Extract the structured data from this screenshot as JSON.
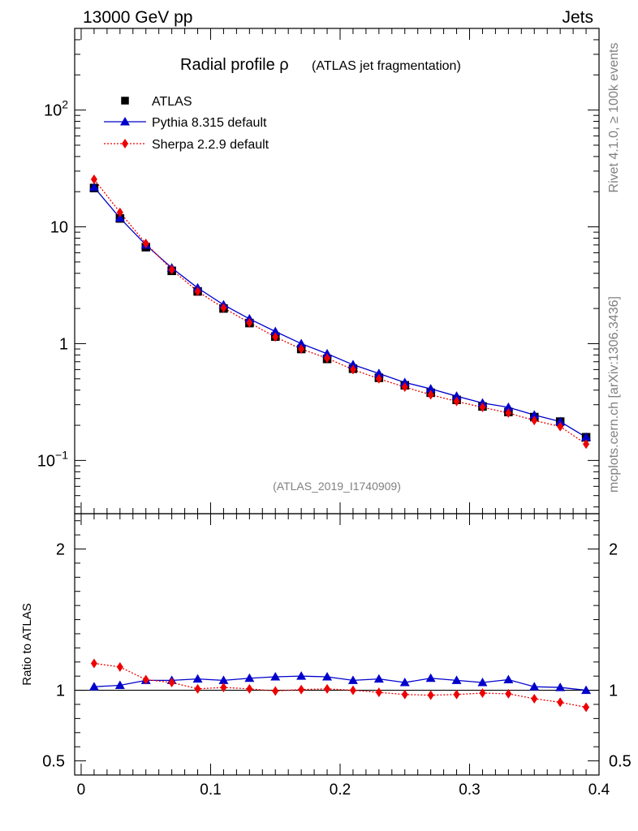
{
  "header": {
    "left": "13000 GeV pp",
    "right": "Jets"
  },
  "side_labels": {
    "top": "Rivet 4.1.0, ≥ 100k events",
    "bottom": "mcplots.cern.ch [arXiv:1306.3436]"
  },
  "chart_data": {
    "type": "line",
    "title_main": "Radial profile ρ",
    "title_sub": "(ATLAS jet fragmentation)",
    "analysis_tag": "(ATLAS_2019_I1740909)",
    "x": [
      0.01,
      0.03,
      0.05,
      0.07,
      0.09,
      0.11,
      0.13,
      0.15,
      0.17,
      0.19,
      0.21,
      0.23,
      0.25,
      0.27,
      0.29,
      0.31,
      0.33,
      0.35,
      0.37,
      0.39
    ],
    "xlim": [
      -0.005,
      0.4
    ],
    "x_ticks": [
      {
        "value": 0,
        "label": "0"
      },
      {
        "value": 0.1,
        "label": "0.1"
      },
      {
        "value": 0.2,
        "label": "0.2"
      },
      {
        "value": 0.3,
        "label": "0.3"
      },
      {
        "value": 0.4,
        "label": "0.4"
      }
    ],
    "main": {
      "yscale": "log",
      "ylim": [
        0.035,
        500
      ],
      "y_ticks": [
        {
          "value": 0.1,
          "base": "10",
          "exp": "−1"
        },
        {
          "value": 1,
          "label": "1"
        },
        {
          "value": 10,
          "label": "10"
        },
        {
          "value": 100,
          "base": "10",
          "exp": "2"
        }
      ],
      "legend_position": "top-left",
      "series": [
        {
          "name": "ATLAS",
          "style": "data",
          "color": "#000000",
          "marker": "square",
          "values": [
            21.5,
            11.8,
            6.7,
            4.2,
            2.8,
            2.0,
            1.5,
            1.15,
            0.9,
            0.74,
            0.61,
            0.51,
            0.44,
            0.38,
            0.33,
            0.29,
            0.26,
            0.235,
            0.215,
            0.158
          ]
        },
        {
          "name": "Pythia 8.315 default",
          "style": "solid",
          "color": "#0000cc",
          "marker": "triangle",
          "values": [
            21.8,
            11.9,
            7.0,
            4.45,
            3.0,
            2.15,
            1.63,
            1.27,
            1.0,
            0.82,
            0.66,
            0.555,
            0.465,
            0.41,
            0.355,
            0.31,
            0.285,
            0.245,
            0.215,
            0.158
          ]
        },
        {
          "name": "Sherpa 2.2.9 default",
          "style": "dotted",
          "color": "#ee0000",
          "marker": "diamond",
          "values": [
            25.5,
            13.3,
            7.2,
            4.3,
            2.8,
            2.02,
            1.51,
            1.14,
            0.9,
            0.75,
            0.6,
            0.5,
            0.425,
            0.365,
            0.32,
            0.285,
            0.255,
            0.22,
            0.195,
            0.138
          ]
        }
      ]
    },
    "ratio": {
      "ylabel": "Ratio to ATLAS",
      "ylim": [
        0.4,
        2.25
      ],
      "y_ticks": [
        {
          "value": 0.5,
          "label": "0.5"
        },
        {
          "value": 1,
          "label": "1"
        },
        {
          "value": 2,
          "label": "2"
        }
      ],
      "reference": 1,
      "series": [
        {
          "name": "Pythia 8.315 default",
          "color": "#0000cc",
          "style": "solid",
          "marker": "triangle",
          "values": [
            1.025,
            1.035,
            1.07,
            1.07,
            1.08,
            1.07,
            1.085,
            1.095,
            1.1,
            1.095,
            1.07,
            1.08,
            1.055,
            1.085,
            1.07,
            1.055,
            1.075,
            1.025,
            1.02,
            1.0
          ]
        },
        {
          "name": "Sherpa 2.2.9 default",
          "color": "#ee0000",
          "style": "dotted",
          "marker": "diamond",
          "values": [
            1.19,
            1.165,
            1.075,
            1.055,
            1.01,
            1.02,
            1.01,
            0.995,
            1.005,
            1.01,
            1.0,
            0.985,
            0.97,
            0.965,
            0.97,
            0.98,
            0.975,
            0.94,
            0.915,
            0.88
          ]
        }
      ]
    }
  }
}
